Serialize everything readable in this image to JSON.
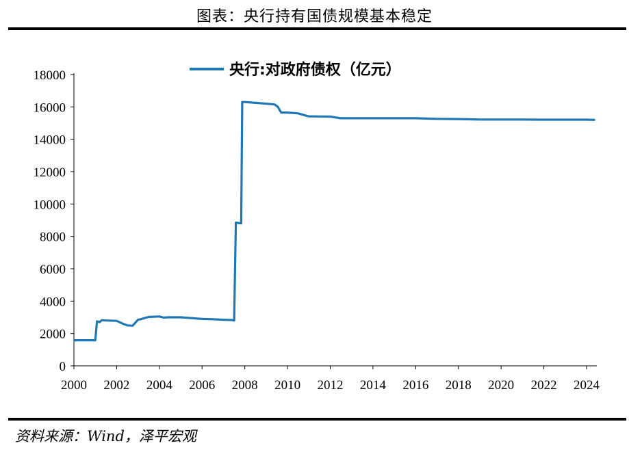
{
  "figure": {
    "title": "图表：央行持有国债规模基本稳定",
    "source": "资料来源：Wind，泽平宏观"
  },
  "chart_data": {
    "type": "line",
    "title": "",
    "xlabel": "",
    "ylabel": "",
    "xlim": [
      2000,
      2024.5
    ],
    "ylim": [
      0,
      18000
    ],
    "x_ticks": [
      "2000",
      "2002",
      "2004",
      "2006",
      "2008",
      "2010",
      "2012",
      "2014",
      "2016",
      "2018",
      "2020",
      "2022",
      "2024"
    ],
    "y_ticks": [
      "0",
      "2000",
      "4000",
      "6000",
      "8000",
      "10000",
      "12000",
      "14000",
      "16000",
      "18000"
    ],
    "grid": false,
    "legend": "top-center",
    "colors": {
      "series": "#1f77b4"
    },
    "series": [
      {
        "name": "央行:对政府债权（亿元）",
        "x": [
          2000.0,
          2001.0,
          2001.08,
          2001.2,
          2001.3,
          2001.5,
          2002.0,
          2002.3,
          2002.5,
          2002.75,
          2003.0,
          2003.1,
          2003.3,
          2003.5,
          2004.0,
          2004.2,
          2004.4,
          2005.0,
          2005.5,
          2006.0,
          2006.5,
          2007.0,
          2007.4,
          2007.5,
          2007.58,
          2007.83,
          2007.88,
          2008.0,
          2008.5,
          2009.0,
          2009.4,
          2009.55,
          2009.7,
          2010.0,
          2010.5,
          2010.9,
          2011.0,
          2011.5,
          2012.0,
          2012.5,
          2013.0,
          2014.0,
          2015.0,
          2016.0,
          2016.5,
          2017.0,
          2018.0,
          2018.8,
          2019.0,
          2020.0,
          2021.0,
          2021.8,
          2022.0,
          2023.0,
          2024.0,
          2024.4
        ],
        "values": [
          1580,
          1580,
          2750,
          2700,
          2820,
          2800,
          2780,
          2600,
          2500,
          2480,
          2850,
          2870,
          2950,
          3020,
          3050,
          2980,
          3000,
          3000,
          2950,
          2900,
          2880,
          2850,
          2830,
          2800,
          8850,
          8800,
          16300,
          16300,
          16250,
          16200,
          16150,
          16000,
          15650,
          15650,
          15600,
          15450,
          15420,
          15410,
          15400,
          15300,
          15300,
          15300,
          15300,
          15300,
          15280,
          15260,
          15250,
          15230,
          15220,
          15220,
          15220,
          15210,
          15210,
          15210,
          15210,
          15200
        ]
      }
    ]
  }
}
